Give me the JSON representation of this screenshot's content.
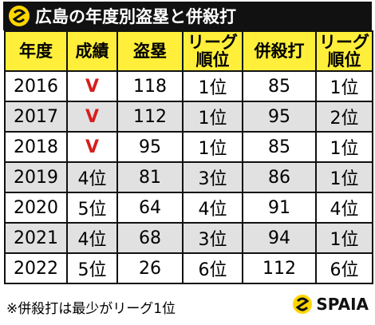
{
  "header": {
    "title": "広島の年度別盗塁と併殺打"
  },
  "table": {
    "columns": [
      "年度",
      "成績",
      "盗塁",
      "リーグ\n順位",
      "併殺打",
      "リーグ\n順位"
    ],
    "rows": [
      [
        "2016",
        "V",
        118,
        "1位",
        85,
        "1位"
      ],
      [
        "2017",
        "V",
        112,
        "1位",
        95,
        "2位"
      ],
      [
        "2018",
        "V",
        95,
        "1位",
        85,
        "1位"
      ],
      [
        "2019",
        "4位",
        81,
        "3位",
        86,
        "1位"
      ],
      [
        "2020",
        "5位",
        64,
        "4位",
        91,
        "4位"
      ],
      [
        "2021",
        "4位",
        68,
        "3位",
        94,
        "1位"
      ],
      [
        "2022",
        "5位",
        26,
        "6位",
        112,
        "6位"
      ]
    ]
  },
  "footer": {
    "note": "※併殺打は最少がリーグ1位",
    "brand": "SPAIA"
  }
}
